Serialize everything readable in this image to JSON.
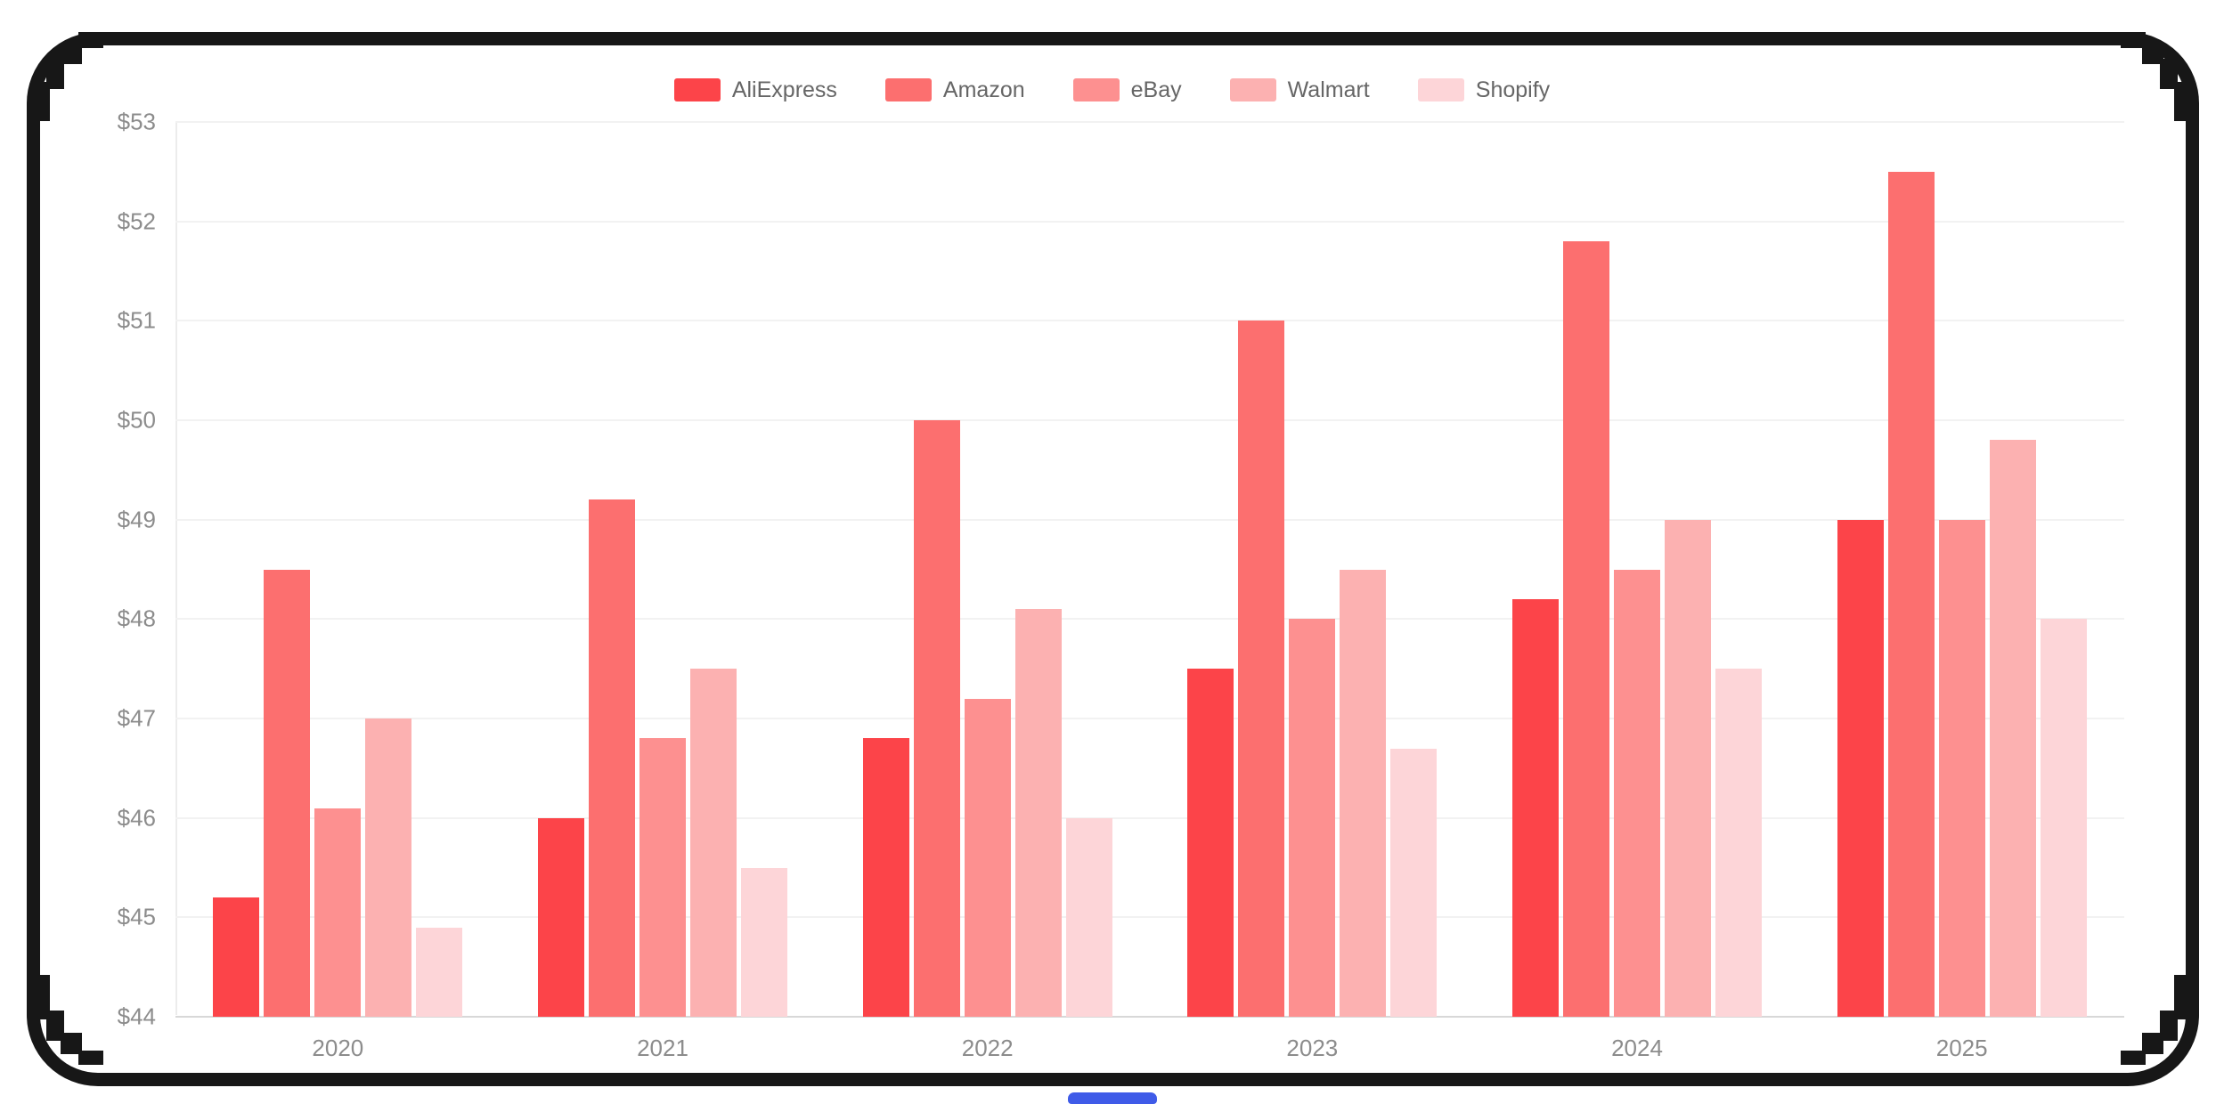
{
  "chart_data": {
    "type": "bar",
    "title": "",
    "categories": [
      "2020",
      "2021",
      "2022",
      "2023",
      "2024",
      "2025"
    ],
    "series": [
      {
        "name": "AliExpress",
        "color": "#fc4449",
        "values": [
          45.2,
          46.0,
          46.8,
          47.5,
          48.2,
          49.0
        ]
      },
      {
        "name": "Amazon",
        "color": "#fc6f6f",
        "values": [
          48.5,
          49.2,
          50.0,
          51.0,
          51.8,
          52.5
        ]
      },
      {
        "name": "eBay",
        "color": "#fd9090",
        "values": [
          46.1,
          46.8,
          47.2,
          48.0,
          48.5,
          49.0
        ]
      },
      {
        "name": "Walmart",
        "color": "#fcb1b1",
        "values": [
          47.0,
          47.5,
          48.1,
          48.5,
          49.0,
          49.8
        ]
      },
      {
        "name": "Shopify",
        "color": "#fdd5d8",
        "values": [
          44.9,
          45.5,
          46.0,
          46.7,
          47.5,
          48.0
        ]
      }
    ],
    "y_axis": {
      "min": 44,
      "max": 53,
      "step": 1,
      "tick_prefix": "$",
      "tick_labels_top_to_bottom": [
        "$53",
        "$52",
        "$51",
        "$50",
        "$49",
        "$48",
        "$47",
        "$46",
        "$45",
        "$44"
      ]
    },
    "x_axis": {
      "tick_labels": [
        "2020",
        "2021",
        "2022",
        "2023",
        "2024",
        "2025"
      ]
    },
    "grid": true,
    "legend_position": "top-center"
  },
  "colors": {
    "frame": "#171717",
    "gridline": "#f2f2f2",
    "axis_line": "#d8d8d8",
    "y_axis_line": "#ececec",
    "axis_label": "#8c8c8c",
    "legend_label": "#666666",
    "indicator": "#3f5be8",
    "background": "#ffffff"
  }
}
